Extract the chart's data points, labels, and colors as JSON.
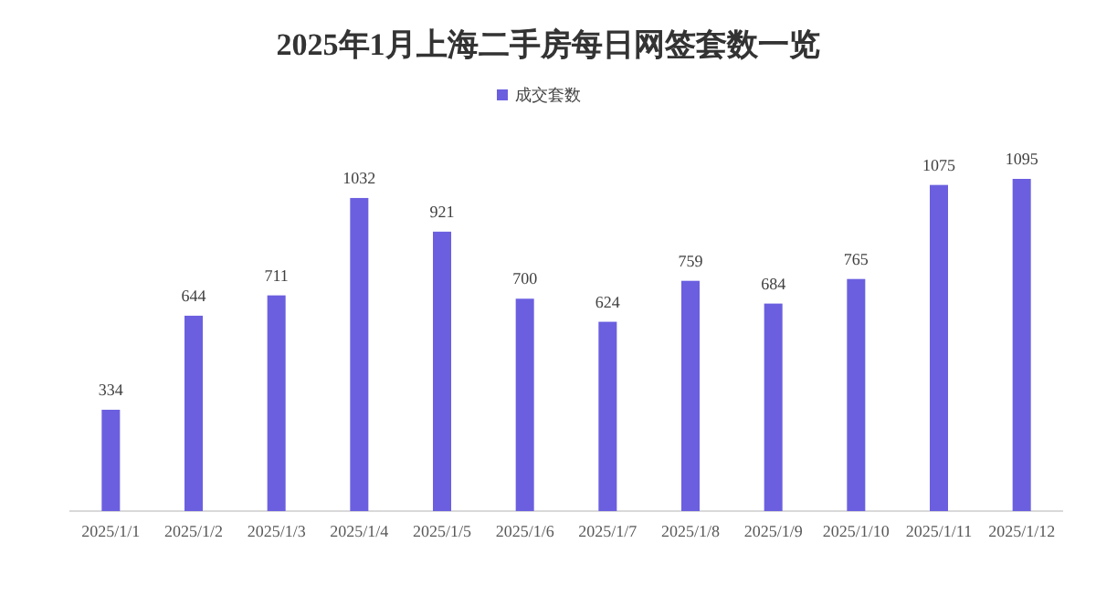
{
  "chart_data": {
    "type": "bar",
    "title": "2025年1月上海二手房每日网签套数一览",
    "categories": [
      "2025/1/1",
      "2025/1/2",
      "2025/1/3",
      "2025/1/4",
      "2025/1/5",
      "2025/1/6",
      "2025/1/7",
      "2025/1/8",
      "2025/1/9",
      "2025/1/10",
      "2025/1/11",
      "2025/1/12"
    ],
    "series": [
      {
        "name": "成交套数",
        "color": "#6b5fe0",
        "values": [
          334,
          644,
          711,
          1032,
          921,
          700,
          624,
          759,
          684,
          765,
          1075,
          1095
        ]
      }
    ],
    "data_labels": true,
    "legend": "top"
  }
}
